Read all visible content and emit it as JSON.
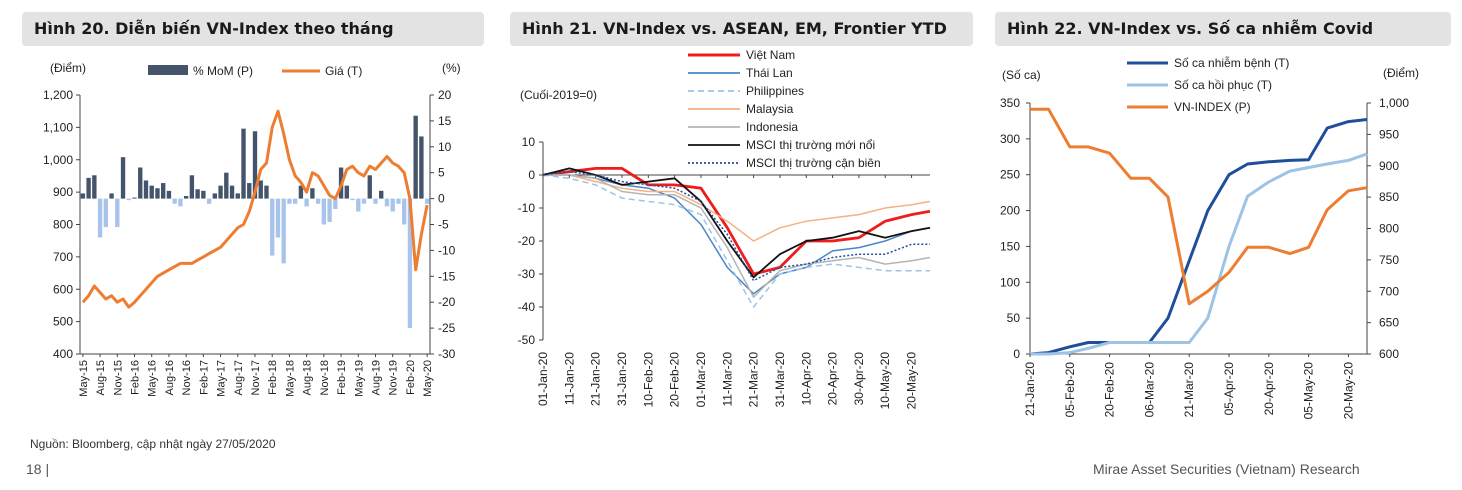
{
  "page": {
    "source_note": "Nguồn: Bloomberg, cập nhật ngày 27/05/2020",
    "page_number": "18 |",
    "footer": "Mirae Asset Securities (Vietnam) Research"
  },
  "panels": [
    {
      "title": "Hình 20. Diễn biến VN-Index theo tháng"
    },
    {
      "title": "Hình 21. VN-Index vs. ASEAN, EM, Frontier YTD"
    },
    {
      "title": "Hình 22. VN-Index vs. Số ca nhiễm Covid"
    }
  ],
  "chart_data": [
    {
      "type": "bar",
      "left_unit": "(Điểm)",
      "right_unit": "(%)",
      "ylim_left": [
        400,
        1200
      ],
      "ylim_right": [
        -30,
        20
      ],
      "yticks_left": [
        "400",
        "500",
        "600",
        "700",
        "800",
        "900",
        "1,000",
        "1,100",
        "1,200"
      ],
      "yticks_right": [
        "-30",
        "-25",
        "-20",
        "-15",
        "-10",
        "-5",
        "0",
        "5",
        "10",
        "15",
        "20"
      ],
      "x_tick_labels": [
        "May-15",
        "Aug-15",
        "Nov-15",
        "Feb-16",
        "May-16",
        "Aug-16",
        "Nov-16",
        "Feb-17",
        "May-17",
        "Aug-17",
        "Nov-17",
        "Feb-18",
        "May-18",
        "Aug-18",
        "Nov-18",
        "Feb-19",
        "May-19",
        "Aug-19",
        "Nov-19",
        "Feb-20",
        "May-20"
      ],
      "legend": [
        "% MoM (P)",
        "Giá (T)"
      ],
      "colors": {
        "bars_positive": "#44546a",
        "bars_negative": "#a9c4eb",
        "line": "#ed7d31"
      },
      "x": [
        "May-15",
        "Jun-15",
        "Jul-15",
        "Aug-15",
        "Sep-15",
        "Oct-15",
        "Nov-15",
        "Dec-15",
        "Jan-16",
        "Feb-16",
        "Mar-16",
        "Apr-16",
        "May-16",
        "Jun-16",
        "Jul-16",
        "Aug-16",
        "Sep-16",
        "Oct-16",
        "Nov-16",
        "Dec-16",
        "Jan-17",
        "Feb-17",
        "Mar-17",
        "Apr-17",
        "May-17",
        "Jun-17",
        "Jul-17",
        "Aug-17",
        "Sep-17",
        "Oct-17",
        "Nov-17",
        "Dec-17",
        "Jan-18",
        "Feb-18",
        "Mar-18",
        "Apr-18",
        "May-18",
        "Jun-18",
        "Jul-18",
        "Aug-18",
        "Sep-18",
        "Oct-18",
        "Nov-18",
        "Dec-18",
        "Jan-19",
        "Feb-19",
        "Mar-19",
        "Apr-19",
        "May-19",
        "Jun-19",
        "Jul-19",
        "Aug-19",
        "Sep-19",
        "Oct-19",
        "Nov-19",
        "Dec-19",
        "Jan-20",
        "Feb-20",
        "Mar-20",
        "Apr-20",
        "May-20"
      ],
      "series": [
        {
          "name": "% MoM (P)",
          "values": [
            1.0,
            4.0,
            4.5,
            -7.5,
            -5.5,
            1.0,
            -5.5,
            8.0,
            -0.3,
            0.2,
            6.0,
            3.5,
            2.5,
            2.0,
            3.0,
            1.5,
            -1.0,
            -1.5,
            0.5,
            4.5,
            1.8,
            1.5,
            -1.0,
            1.0,
            2.5,
            5.0,
            2.5,
            1.0,
            13.5,
            3.0,
            13.0,
            3.5,
            2.5,
            -11.0,
            -7.5,
            -12.5,
            -1.0,
            -1.0,
            2.5,
            -1.5,
            2.0,
            -1.0,
            -5.0,
            -4.5,
            -2.0,
            6.0,
            2.5,
            -0.3,
            -2.5,
            -1.0,
            4.5,
            -1.0,
            1.5,
            -1.5,
            -2.5,
            -1.0,
            -5.0,
            -25.0,
            16.0,
            12.0,
            -1.0
          ]
        },
        {
          "name": "Giá (T)",
          "values": [
            560,
            580,
            610,
            590,
            570,
            580,
            560,
            570,
            545,
            560,
            580,
            600,
            620,
            640,
            650,
            660,
            670,
            680,
            680,
            680,
            690,
            700,
            710,
            720,
            730,
            750,
            770,
            790,
            800,
            840,
            900,
            970,
            990,
            1100,
            1150,
            1080,
            1000,
            950,
            930,
            900,
            960,
            950,
            920,
            890,
            880,
            920,
            970,
            980,
            960,
            950,
            980,
            970,
            990,
            1010,
            990,
            980,
            960,
            880,
            660,
            770,
            860
          ]
        }
      ]
    },
    {
      "type": "line",
      "note": "(Cuối-2019=0)",
      "ylim": [
        -50,
        10
      ],
      "yticks": [
        "-50",
        "-40",
        "-30",
        "-20",
        "-10",
        "0",
        "10"
      ],
      "x_tick_labels": [
        "01-Jan-20",
        "11-Jan-20",
        "21-Jan-20",
        "31-Jan-20",
        "10-Feb-20",
        "20-Feb-20",
        "01-Mar-20",
        "11-Mar-20",
        "21-Mar-20",
        "31-Mar-20",
        "10-Apr-20",
        "20-Apr-20",
        "30-Apr-20",
        "10-May-20",
        "20-May-20"
      ],
      "x": [
        "01-Jan-20",
        "11-Jan-20",
        "21-Jan-20",
        "31-Jan-20",
        "10-Feb-20",
        "20-Feb-20",
        "01-Mar-20",
        "11-Mar-20",
        "21-Mar-20",
        "31-Mar-20",
        "10-Apr-20",
        "20-Apr-20",
        "30-Apr-20",
        "10-May-20",
        "20-May-20",
        "27-May-20"
      ],
      "series": [
        {
          "name": "Việt Nam",
          "color": "#ee1c1c",
          "dash": "none",
          "values": [
            0,
            1,
            2,
            2,
            -3,
            -3,
            -4,
            -16,
            -30,
            -28,
            -20,
            -20,
            -19,
            -14,
            -12,
            -11
          ]
        },
        {
          "name": "Thái Lan",
          "color": "#4a86c8",
          "dash": "none",
          "values": [
            0,
            0,
            -1,
            -3,
            -4,
            -7,
            -15,
            -28,
            -36,
            -30,
            -28,
            -23,
            -22,
            -20,
            -17,
            -16
          ]
        },
        {
          "name": "Philippines",
          "color": "#9dc3e6",
          "dash": "6,4",
          "values": [
            0,
            -1,
            -3,
            -7,
            -8,
            -9,
            -12,
            -26,
            -40,
            -30,
            -28,
            -27,
            -28,
            -29,
            -29,
            -29
          ]
        },
        {
          "name": "Malaysia",
          "color": "#f4b183",
          "dash": "none",
          "values": [
            0,
            0,
            -2,
            -4,
            -5,
            -5,
            -9,
            -14,
            -20,
            -16,
            -14,
            -13,
            -12,
            -10,
            -9,
            -8
          ]
        },
        {
          "name": "Indonesia",
          "color": "#b4b4b4",
          "dash": "none",
          "values": [
            0,
            0,
            -1,
            -5,
            -6,
            -6,
            -10,
            -22,
            -37,
            -29,
            -27,
            -26,
            -25,
            -27,
            -26,
            -25
          ]
        },
        {
          "name": "MSCI thị trường mới nổi",
          "color": "#111111",
          "dash": "none",
          "values": [
            0,
            2,
            0,
            -3,
            -2,
            -1,
            -8,
            -20,
            -31,
            -24,
            -20,
            -19,
            -17,
            -19,
            -17,
            -16
          ]
        },
        {
          "name": "MSCI thị trường cận biên",
          "color": "#1f4e9b",
          "dash": "2,2",
          "values": [
            0,
            1,
            0,
            -2,
            -3,
            -4,
            -8,
            -18,
            -32,
            -28,
            -27,
            -25,
            -24,
            -24,
            -21,
            -21
          ]
        }
      ]
    },
    {
      "type": "line",
      "left_unit": "(Số ca)",
      "right_unit": "(Điểm)",
      "ylim_left": [
        0,
        350
      ],
      "ylim_right": [
        600,
        1000
      ],
      "yticks_left": [
        "0",
        "50",
        "100",
        "150",
        "200",
        "250",
        "300",
        "350"
      ],
      "yticks_right": [
        "600",
        "650",
        "700",
        "750",
        "800",
        "850",
        "900",
        "950",
        "1,000"
      ],
      "x_tick_labels": [
        "21-Jan-20",
        "05-Feb-20",
        "20-Feb-20",
        "06-Mar-20",
        "21-Mar-20",
        "05-Apr-20",
        "20-Apr-20",
        "05-May-20",
        "20-May-20"
      ],
      "x": [
        "21-Jan-20",
        "28-Jan-20",
        "05-Feb-20",
        "12-Feb-20",
        "20-Feb-20",
        "28-Feb-20",
        "06-Mar-20",
        "13-Mar-20",
        "21-Mar-20",
        "28-Mar-20",
        "05-Apr-20",
        "12-Apr-20",
        "20-Apr-20",
        "28-Apr-20",
        "05-May-20",
        "12-May-20",
        "20-May-20",
        "27-May-20"
      ],
      "series": [
        {
          "name": "Số ca nhiễm bệnh (T)",
          "axis": "left",
          "color": "#1f4e9b",
          "values": [
            0,
            2,
            10,
            16,
            16,
            16,
            16,
            50,
            130,
            200,
            250,
            265,
            268,
            270,
            271,
            315,
            324,
            327
          ]
        },
        {
          "name": "Số ca hồi phục (T)",
          "axis": "left",
          "color": "#9dc3e6",
          "values": [
            0,
            0,
            2,
            8,
            16,
            16,
            16,
            16,
            16,
            50,
            150,
            220,
            240,
            255,
            260,
            265,
            270,
            279
          ]
        },
        {
          "name": "VN-INDEX  (P)",
          "axis": "right",
          "color": "#ed7d31",
          "values": [
            990,
            990,
            930,
            930,
            920,
            880,
            880,
            850,
            680,
            700,
            730,
            770,
            770,
            760,
            770,
            830,
            860,
            865
          ]
        }
      ]
    }
  ]
}
